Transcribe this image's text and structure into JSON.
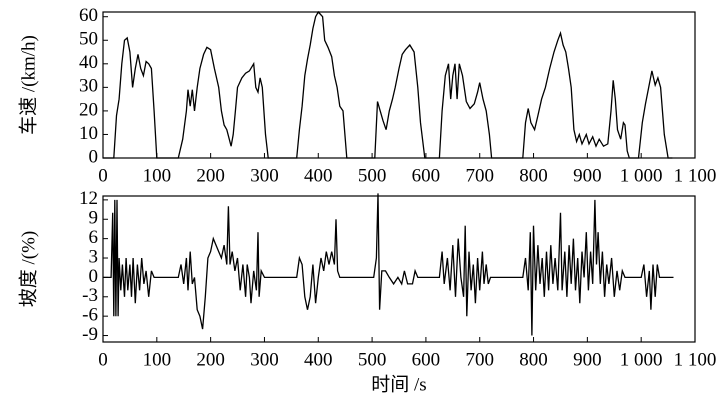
{
  "chart_data": [
    {
      "type": "line",
      "y_label": "车速 /(km/h)",
      "color": "#000000",
      "xlim": [
        0,
        1100
      ],
      "xticks": [
        0,
        100,
        200,
        300,
        400,
        500,
        600,
        700,
        800,
        900,
        {
          "value": 1000,
          "label": "1 000"
        },
        {
          "value": 1100,
          "label": "1 100"
        }
      ],
      "ylim": [
        0,
        62
      ],
      "yticks": [
        0,
        10,
        20,
        30,
        40,
        50,
        60
      ],
      "x": [
        0,
        20,
        25,
        30,
        35,
        40,
        45,
        50,
        55,
        60,
        65,
        70,
        75,
        80,
        85,
        90,
        95,
        100,
        140,
        148,
        155,
        158,
        162,
        166,
        170,
        175,
        180,
        187,
        193,
        200,
        207,
        215,
        220,
        225,
        230,
        238,
        242,
        246,
        250,
        258,
        265,
        272,
        280,
        284,
        288,
        292,
        296,
        302,
        307,
        360,
        365,
        370,
        375,
        380,
        385,
        390,
        395,
        400,
        408,
        412,
        418,
        425,
        430,
        435,
        440,
        446,
        453,
        505,
        510,
        515,
        520,
        526,
        532,
        538,
        543,
        550,
        556,
        562,
        570,
        578,
        585,
        590,
        598,
        625,
        630,
        636,
        642,
        646,
        650,
        654,
        658,
        662,
        668,
        675,
        682,
        690,
        696,
        700,
        706,
        712,
        718,
        722,
        780,
        785,
        790,
        795,
        802,
        808,
        815,
        822,
        830,
        838,
        845,
        850,
        855,
        860,
        865,
        870,
        875,
        880,
        885,
        890,
        898,
        903,
        910,
        916,
        922,
        930,
        938,
        944,
        948,
        952,
        956,
        962,
        967,
        970,
        974,
        978,
        995,
        1002,
        1008,
        1014,
        1020,
        1026,
        1031,
        1036,
        1043,
        1050,
        1058
      ],
      "values": [
        0,
        0,
        18,
        25,
        40,
        50,
        51,
        45,
        30,
        38,
        44,
        38,
        35,
        41,
        40,
        38,
        20,
        0,
        0,
        8,
        20,
        29,
        22,
        29,
        20,
        30,
        38,
        44,
        47,
        46,
        38,
        30,
        20,
        14,
        12,
        5,
        10,
        20,
        30,
        34,
        36,
        37,
        40,
        30,
        28,
        34,
        30,
        10,
        0,
        0,
        12,
        22,
        35,
        42,
        48,
        55,
        60,
        62,
        60,
        50,
        47,
        43,
        35,
        30,
        22,
        20,
        0,
        0,
        24,
        20,
        16,
        12,
        20,
        25,
        30,
        38,
        44,
        46,
        48,
        45,
        30,
        15,
        0,
        0,
        20,
        35,
        40,
        25,
        35,
        40,
        25,
        40,
        35,
        24,
        21,
        23,
        28,
        32,
        25,
        20,
        10,
        0,
        0,
        15,
        21,
        15,
        12,
        18,
        25,
        30,
        38,
        45,
        50,
        53,
        48,
        45,
        38,
        30,
        12,
        7,
        10,
        6,
        10,
        6,
        9,
        5,
        8,
        5,
        6,
        20,
        33,
        25,
        12,
        8,
        15,
        14,
        3,
        0,
        0,
        15,
        23,
        30,
        37,
        31,
        34,
        30,
        10,
        0,
        0
      ]
    },
    {
      "type": "line",
      "y_label": "坡度 /(%)",
      "x_label": "时间 /s",
      "color": "#000000",
      "xlim": [
        0,
        1100
      ],
      "xticks": [
        0,
        100,
        200,
        300,
        400,
        500,
        600,
        700,
        800,
        900,
        {
          "value": 1000,
          "label": "1 000"
        },
        {
          "value": 1100,
          "label": "1 100"
        }
      ],
      "ylim": [
        -10,
        12.6
      ],
      "yticks": [
        -9,
        -6,
        -3,
        0,
        3,
        6,
        9,
        12
      ],
      "x": [
        0,
        15,
        18,
        20,
        22,
        24,
        26,
        28,
        30,
        33,
        36,
        40,
        43,
        46,
        50,
        53,
        56,
        60,
        64,
        68,
        72,
        76,
        80,
        85,
        90,
        95,
        140,
        145,
        150,
        155,
        158,
        162,
        166,
        170,
        175,
        180,
        185,
        190,
        195,
        200,
        205,
        210,
        215,
        220,
        225,
        230,
        233,
        236,
        240,
        245,
        250,
        255,
        260,
        265,
        268,
        272,
        275,
        280,
        285,
        288,
        290,
        294,
        300,
        360,
        365,
        370,
        375,
        380,
        385,
        390,
        395,
        400,
        405,
        410,
        415,
        420,
        425,
        430,
        433,
        436,
        440,
        450,
        503,
        508,
        511,
        514,
        518,
        525,
        532,
        540,
        548,
        555,
        560,
        566,
        575,
        580,
        585,
        625,
        630,
        634,
        640,
        645,
        650,
        655,
        660,
        665,
        670,
        673,
        676,
        680,
        684,
        688,
        692,
        696,
        700,
        705,
        708,
        712,
        716,
        720,
        780,
        785,
        790,
        794,
        797,
        800,
        804,
        808,
        812,
        816,
        820,
        824,
        828,
        832,
        836,
        840,
        845,
        850,
        853,
        858,
        862,
        866,
        870,
        874,
        878,
        882,
        886,
        890,
        894,
        898,
        902,
        906,
        910,
        914,
        917,
        920,
        924,
        928,
        932,
        936,
        940,
        945,
        950,
        955,
        960,
        965,
        970,
        1000,
        1005,
        1010,
        1015,
        1018,
        1022,
        1026,
        1030,
        1034,
        1060
      ],
      "values": [
        0,
        0,
        10,
        -6,
        12,
        -6,
        12,
        -6,
        3,
        -2,
        2,
        -3,
        3,
        -2,
        2,
        -3,
        3,
        -4,
        2,
        -2,
        3,
        -1,
        1,
        -3,
        1,
        0,
        0,
        2,
        -1,
        3,
        -2,
        4,
        -1,
        0,
        -5,
        -6,
        -8,
        -3,
        3,
        4,
        6,
        5,
        4,
        3,
        5,
        2,
        11,
        2,
        4,
        1,
        3,
        -2,
        2,
        -3,
        2,
        0,
        -4,
        1,
        -2,
        7,
        -3,
        1,
        0,
        0,
        3,
        2,
        -3,
        -5,
        -3,
        2,
        -4,
        0,
        3,
        1,
        4,
        2,
        4,
        2,
        9,
        1,
        0,
        0,
        0,
        3,
        13,
        -5,
        1,
        1,
        0,
        -1,
        0,
        -1,
        1,
        -1,
        -1,
        1,
        0,
        0,
        4,
        -1,
        3,
        -2,
        5,
        -3,
        6,
        0,
        -3,
        8,
        -6,
        4,
        -2,
        2,
        -4,
        3,
        -2,
        4,
        -1,
        2,
        -1,
        0,
        0,
        3,
        -2,
        7,
        -9,
        8,
        -2,
        5,
        -1,
        3,
        -3,
        4,
        -2,
        5,
        -1,
        3,
        -2,
        10,
        -2,
        4,
        -3,
        5,
        -1,
        6,
        -2,
        3,
        -4,
        4,
        0,
        7,
        -2,
        4,
        -1,
        12,
        2,
        7,
        -1,
        4,
        -3,
        2,
        -1,
        3,
        -3,
        1,
        -2,
        1,
        0,
        0,
        2,
        -3,
        1,
        -5,
        2,
        -3,
        2,
        0,
        0
      ]
    }
  ]
}
